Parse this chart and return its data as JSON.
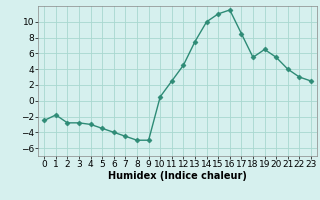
{
  "x": [
    0,
    1,
    2,
    3,
    4,
    5,
    6,
    7,
    8,
    9,
    10,
    11,
    12,
    13,
    14,
    15,
    16,
    17,
    18,
    19,
    20,
    21,
    22,
    23
  ],
  "y": [
    -2.5,
    -1.8,
    -2.8,
    -2.8,
    -3.0,
    -3.5,
    -4.0,
    -4.5,
    -5.0,
    -5.0,
    0.5,
    2.5,
    4.5,
    7.5,
    10.0,
    11.0,
    11.5,
    8.5,
    5.5,
    6.5,
    5.5,
    4.0,
    3.0,
    2.5
  ],
  "xlabel": "Humidex (Indice chaleur)",
  "ylim": [
    -7,
    12
  ],
  "xlim": [
    -0.5,
    23.5
  ],
  "yticks": [
    -6,
    -4,
    -2,
    0,
    2,
    4,
    6,
    8,
    10
  ],
  "xticks": [
    0,
    1,
    2,
    3,
    4,
    5,
    6,
    7,
    8,
    9,
    10,
    11,
    12,
    13,
    14,
    15,
    16,
    17,
    18,
    19,
    20,
    21,
    22,
    23
  ],
  "line_color": "#2e8b76",
  "marker": "D",
  "marker_size": 2.5,
  "bg_color": "#d6f0ee",
  "grid_color": "#a8d8d0",
  "label_fontsize": 7,
  "tick_fontsize": 6.5
}
